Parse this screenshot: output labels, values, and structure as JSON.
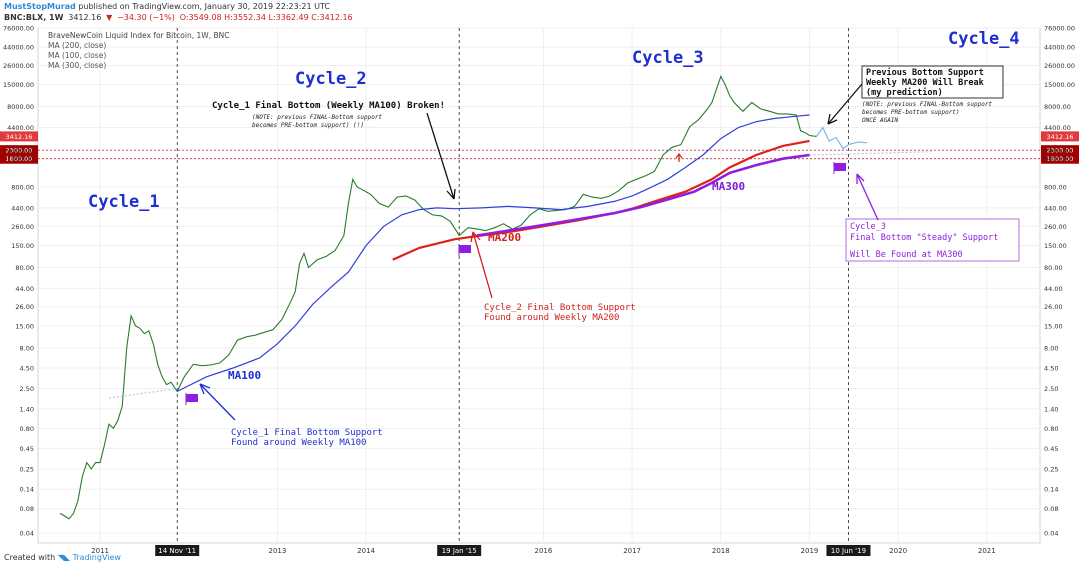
{
  "header": {
    "author": "MustStopMurad",
    "published": "published on TradingView.com, January 30, 2019 22:23:21 UTC",
    "symbol": "BNC:BLX, 1W",
    "last": "3412.16",
    "change": "−34.30 (−1%)",
    "ohlc": "O:3549.08 H:3552.34 L:3362.49 C:3412.16"
  },
  "footer": {
    "created": "Created with",
    "brand": "TradingView"
  },
  "chart_data": {
    "type": "line",
    "title": "BraveNewCoin Liquid Index for Bitcoin, 1W, BNC",
    "legend": [
      "MA (200, close)",
      "MA (100, close)",
      "MA (300, close)"
    ],
    "y_scale": "log",
    "ylim": [
      0.03,
      76000
    ],
    "xlim": [
      2010.3,
      2021.6
    ],
    "y_ticks": [
      "0.04",
      "0.08",
      "0.14",
      "0.25",
      "0.45",
      "0.80",
      "1.40",
      "2.50",
      "4.50",
      "8.00",
      "15.00",
      "26.00",
      "44.00",
      "80.00",
      "150.00",
      "260.00",
      "440.00",
      "800.00",
      "1800.00",
      "2300.00",
      "4400.00",
      "8000.00",
      "15000.00",
      "26000.00",
      "44000.00",
      "76000.00"
    ],
    "y_tick_values": [
      0.04,
      0.08,
      0.14,
      0.25,
      0.45,
      0.8,
      1.4,
      2.5,
      4.5,
      8,
      15,
      26,
      44,
      80,
      150,
      260,
      440,
      800,
      1800,
      2300,
      4400,
      8000,
      15000,
      26000,
      44000,
      76000
    ],
    "x_ticks": [
      {
        "v": 2011.0,
        "label": "2011"
      },
      {
        "v": 2013.0,
        "label": "2013"
      },
      {
        "v": 2014.0,
        "label": "2014"
      },
      {
        "v": 2016.0,
        "label": "2016"
      },
      {
        "v": 2017.0,
        "label": "2017"
      },
      {
        "v": 2018.0,
        "label": "2018"
      },
      {
        "v": 2019.0,
        "label": "2019"
      },
      {
        "v": 2020.0,
        "label": "2020"
      },
      {
        "v": 2021.0,
        "label": "2021"
      }
    ],
    "x_markers": [
      {
        "v": 2011.87,
        "label": "14 Nov '11"
      },
      {
        "v": 2015.05,
        "label": "19 Jan '15"
      },
      {
        "v": 2019.44,
        "label": "10 Jun '19"
      }
    ],
    "price_labels": [
      {
        "value": 3412.16,
        "label": "3412.16",
        "color": "#e0393e"
      },
      {
        "value": 2300,
        "label": "2300.00",
        "color": "#a30000"
      },
      {
        "value": 1800,
        "label": "1800.00",
        "color": "#a30000"
      }
    ],
    "series": [
      {
        "name": "BNC:BLX",
        "color": "#2a7b2a",
        "x": [
          2010.55,
          2010.6,
          2010.65,
          2010.7,
          2010.75,
          2010.8,
          2010.85,
          2010.9,
          2010.95,
          2011.0,
          2011.05,
          2011.1,
          2011.15,
          2011.2,
          2011.25,
          2011.3,
          2011.35,
          2011.4,
          2011.45,
          2011.5,
          2011.55,
          2011.6,
          2011.65,
          2011.7,
          2011.75,
          2011.8,
          2011.87,
          2011.95,
          2012.05,
          2012.15,
          2012.25,
          2012.35,
          2012.45,
          2012.55,
          2012.65,
          2012.75,
          2012.85,
          2012.95,
          2013.05,
          2013.15,
          2013.2,
          2013.25,
          2013.3,
          2013.35,
          2013.45,
          2013.55,
          2013.65,
          2013.75,
          2013.8,
          2013.85,
          2013.9,
          2013.95,
          2014.05,
          2014.15,
          2014.25,
          2014.35,
          2014.45,
          2014.55,
          2014.65,
          2014.75,
          2014.85,
          2014.95,
          2015.05,
          2015.15,
          2015.25,
          2015.35,
          2015.45,
          2015.55,
          2015.65,
          2015.75,
          2015.85,
          2015.95,
          2016.05,
          2016.15,
          2016.25,
          2016.35,
          2016.45,
          2016.55,
          2016.65,
          2016.75,
          2016.85,
          2016.95,
          2017.05,
          2017.15,
          2017.25,
          2017.35,
          2017.45,
          2017.55,
          2017.65,
          2017.75,
          2017.85,
          2017.9,
          2017.95,
          2018.0,
          2018.05,
          2018.1,
          2018.15,
          2018.25,
          2018.35,
          2018.45,
          2018.55,
          2018.65,
          2018.75,
          2018.8,
          2018.85,
          2018.9,
          2018.95,
          2019.0,
          2019.08
        ],
        "y": [
          0.07,
          0.065,
          0.06,
          0.07,
          0.1,
          0.2,
          0.3,
          0.25,
          0.3,
          0.3,
          0.5,
          0.9,
          0.8,
          1.0,
          1.5,
          8.0,
          20.0,
          15.0,
          14.0,
          12.0,
          13.0,
          9.0,
          5.0,
          3.5,
          2.8,
          3.0,
          2.3,
          3.5,
          5.0,
          4.8,
          4.9,
          5.2,
          6.5,
          10.0,
          11.0,
          11.5,
          12.5,
          13.5,
          18.0,
          30.0,
          40.0,
          90.0,
          120.0,
          80.0,
          100.0,
          110.0,
          130.0,
          200.0,
          500.0,
          1000.0,
          800.0,
          750.0,
          650.0,
          500.0,
          450.0,
          600.0,
          620.0,
          550.0,
          420.0,
          360.0,
          350.0,
          300.0,
          200.0,
          250.0,
          240.0,
          230.0,
          250.0,
          280.0,
          240.0,
          270.0,
          360.0,
          430.0,
          400.0,
          410.0,
          420.0,
          460.0,
          650.0,
          600.0,
          580.0,
          620.0,
          720.0,
          900.0,
          1000.0,
          1100.0,
          1250.0,
          2000.0,
          2500.0,
          2700.0,
          4500.0,
          5500.0,
          7500.0,
          9000.0,
          13000.0,
          19000.0,
          15000.0,
          11000.0,
          9000.0,
          7000.0,
          9000.0,
          7500.0,
          7000.0,
          6500.0,
          6500.0,
          6400.0,
          6300.0,
          4000.0,
          3800.0,
          3500.0,
          3412.16
        ]
      },
      {
        "name": "MA (100, close)",
        "color": "#2e3ee0",
        "x": [
          2011.87,
          2012.2,
          2012.5,
          2012.8,
          2013.0,
          2013.2,
          2013.4,
          2013.6,
          2013.8,
          2014.0,
          2014.2,
          2014.4,
          2014.6,
          2014.8,
          2015.0,
          2015.3,
          2015.6,
          2015.9,
          2016.2,
          2016.5,
          2016.8,
          2017.0,
          2017.2,
          2017.4,
          2017.6,
          2017.8,
          2018.0,
          2018.2,
          2018.4,
          2018.6,
          2018.8,
          2019.0
        ],
        "y": [
          2.3,
          3.5,
          4.5,
          6.0,
          9.0,
          15.0,
          28.0,
          45.0,
          70.0,
          150.0,
          260.0,
          360.0,
          420.0,
          440.0,
          430.0,
          440.0,
          460.0,
          440.0,
          420.0,
          460.0,
          530.0,
          620.0,
          780.0,
          1000.0,
          1400.0,
          2000.0,
          3200.0,
          4400.0,
          5200.0,
          5700.0,
          6000.0,
          6300.0
        ]
      },
      {
        "name": "MA (200, close)",
        "color": "#e0201b",
        "x": [
          2014.3,
          2014.6,
          2015.0,
          2015.3,
          2015.6,
          2016.0,
          2016.4,
          2016.8,
          2017.0,
          2017.3,
          2017.6,
          2017.9,
          2018.1,
          2018.4,
          2018.7,
          2019.0
        ],
        "y": [
          100.0,
          140.0,
          180.0,
          200.0,
          220.0,
          260.0,
          310.0,
          380.0,
          430.0,
          550.0,
          700.0,
          1000.0,
          1400.0,
          2000.0,
          2600.0,
          3000.0
        ]
      },
      {
        "name": "MA (300, close)",
        "color": "#8e1fe0",
        "x": [
          2015.25,
          2015.6,
          2016.0,
          2016.4,
          2016.8,
          2017.1,
          2017.4,
          2017.7,
          2017.9,
          2018.1,
          2018.4,
          2018.7,
          2019.0
        ],
        "y": [
          200.0,
          230.0,
          270.0,
          320.0,
          380.0,
          450.0,
          560.0,
          700.0,
          900.0,
          1200.0,
          1500.0,
          1800.0,
          2000.0
        ]
      },
      {
        "name": "MA200 extension",
        "color": "#b9b9ef",
        "x": [
          2011.1,
          2011.87
        ],
        "y": [
          1.9,
          2.5
        ]
      },
      {
        "name": "projection",
        "color": "#86b4e0",
        "x": [
          2019.08,
          2019.15,
          2019.22,
          2019.3,
          2019.38,
          2019.44,
          2019.55,
          2019.65
        ],
        "y": [
          3412.16,
          4400.0,
          3000.0,
          3300.0,
          2400.0,
          2700.0,
          2900.0,
          2850.0
        ]
      },
      {
        "name": "MA300 extension",
        "color": "#c9a9ea",
        "x": [
          2019.0,
          2020.4
        ],
        "y": [
          2000.0,
          2200.0
        ]
      }
    ],
    "annotations": {
      "cycle1": "Cycle_1",
      "cycle2": "Cycle_2",
      "cycle3": "Cycle_3",
      "cycle4": "Cycle_4",
      "ma100": "MA100",
      "ma200": "MA200",
      "ma300": "MA300",
      "c1broken": "Cycle_1 Final Bottom (Weekly MA100) Broken!",
      "note1a": "(NOTE: previous FINAL-Bottom support",
      "note1b": "becomes PRE-bottom support) (!)",
      "prev1": "Previous Bottom Support",
      "prev2": "Weekly MA200 Will Break",
      "prev3": "(my prediction)",
      "note2a": "(NOTE: previous FINAL-Bottom support",
      "note2b": "becomes PRE-bottom support)",
      "note2c": "ONCE AGAIN",
      "c1bottom1": "Cycle_1 Final Bottom Support",
      "c1bottom2": "Found around Weekly MA100",
      "c2bottom1": "Cycle_2 Final Bottom Support",
      "c2bottom2": "Found around Weekly MA200",
      "c3box1": "Cycle_3",
      "c3box2": "Final Bottom \"Steady\" Support",
      "c3box3": "Will Be Found at MA300"
    }
  }
}
